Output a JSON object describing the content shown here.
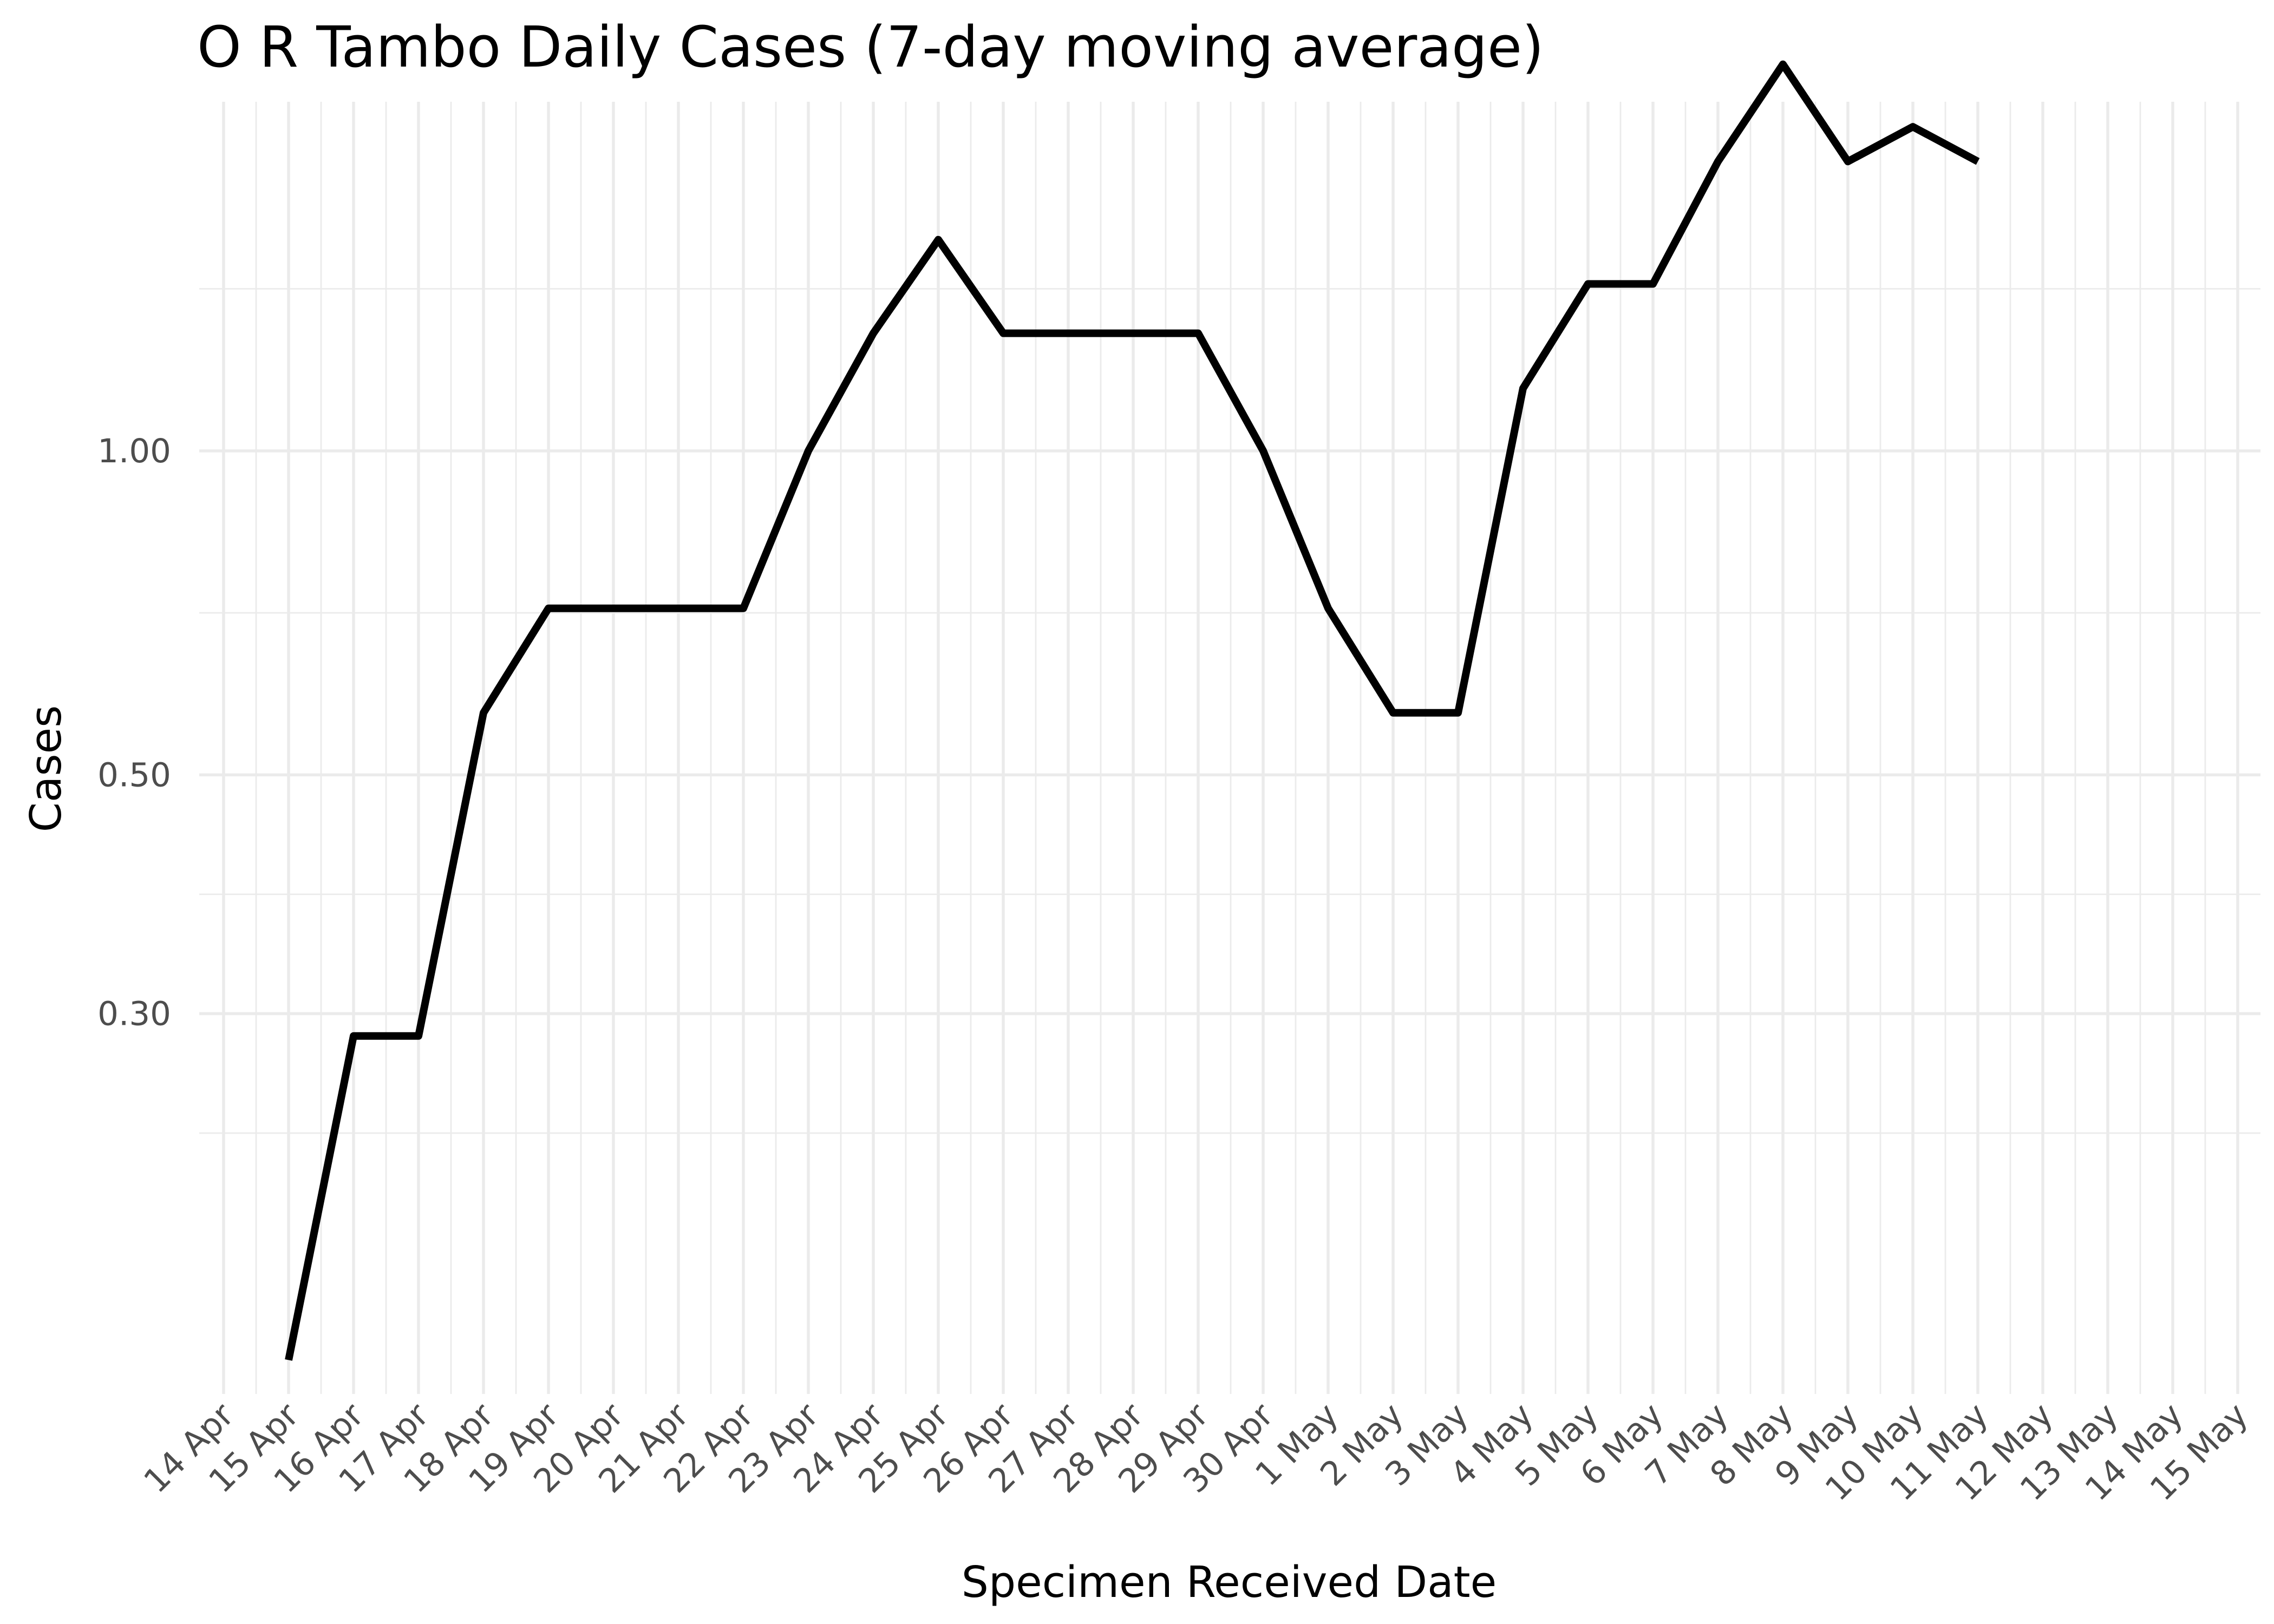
{
  "chart_data": {
    "type": "line",
    "title": "O R Tambo Daily Cases (7-day moving average)",
    "xlabel": "Specimen Received Date",
    "ylabel": "Cases",
    "y_scale": "log10",
    "grid": true,
    "legend": "none",
    "line_color": "#000000",
    "x_ticks": [
      "14 Apr",
      "15 Apr",
      "16 Apr",
      "17 Apr",
      "18 Apr",
      "19 Apr",
      "20 Apr",
      "21 Apr",
      "22 Apr",
      "23 Apr",
      "24 Apr",
      "25 Apr",
      "26 Apr",
      "27 Apr",
      "28 Apr",
      "29 Apr",
      "30 Apr",
      "1 May",
      "2 May",
      "3 May",
      "4 May",
      "5 May",
      "6 May",
      "7 May",
      "8 May",
      "9 May",
      "10 May",
      "11 May",
      "12 May",
      "13 May",
      "14 May",
      "15 May"
    ],
    "y_ticks": [
      {
        "value": 0.3,
        "label": "0.30"
      },
      {
        "value": 0.5,
        "label": "0.50"
      },
      {
        "value": 1.0,
        "label": "1.00"
      }
    ],
    "xlim": [
      "14 Apr",
      "15 May"
    ],
    "ylim": [
      0.133,
      2.11
    ],
    "series": [
      {
        "x": [
          "15 Apr",
          "16 Apr",
          "17 Apr",
          "18 Apr",
          "19 Apr",
          "20 Apr",
          "21 Apr",
          "22 Apr",
          "23 Apr",
          "24 Apr",
          "25 Apr",
          "26 Apr",
          "27 Apr",
          "28 Apr",
          "29 Apr",
          "30 Apr",
          "1 May",
          "2 May",
          "3 May",
          "4 May",
          "5 May",
          "6 May",
          "7 May",
          "8 May",
          "9 May",
          "10 May",
          "11 May"
        ],
        "y": [
          0.143,
          0.286,
          0.286,
          0.571,
          0.714,
          0.714,
          0.714,
          0.714,
          1.0,
          1.286,
          1.571,
          1.286,
          1.286,
          1.286,
          1.286,
          1.0,
          0.714,
          0.571,
          0.571,
          1.143,
          1.429,
          1.429,
          1.857,
          2.286,
          1.857,
          2.0,
          1.857
        ]
      }
    ]
  }
}
